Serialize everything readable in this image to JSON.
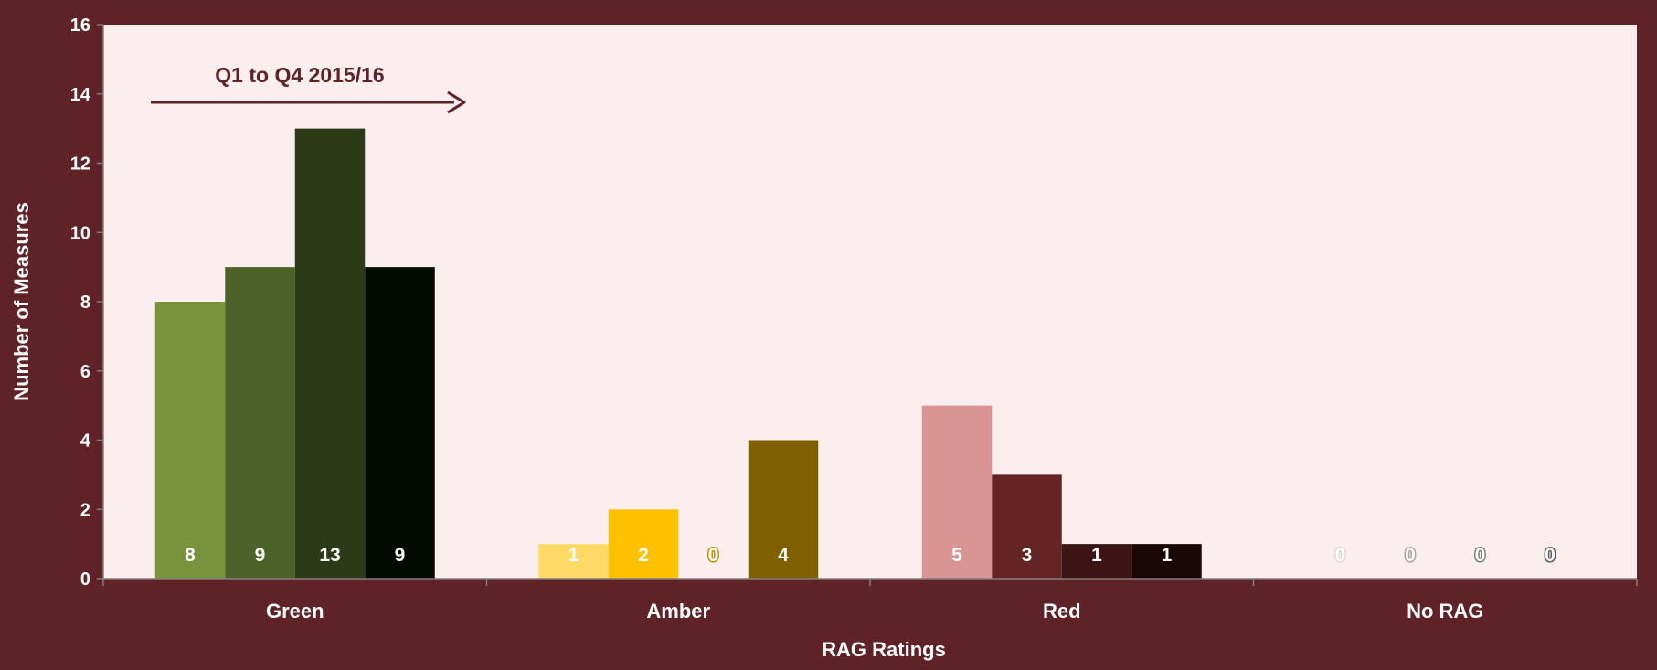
{
  "chart_data": {
    "type": "bar",
    "categories": [
      "Green",
      "Amber",
      "Red",
      "No RAG"
    ],
    "series": [
      {
        "values": [
          8,
          1,
          5,
          0
        ]
      },
      {
        "values": [
          9,
          2,
          3,
          0
        ]
      },
      {
        "values": [
          13,
          0,
          1,
          0
        ]
      },
      {
        "values": [
          9,
          4,
          1,
          0
        ]
      }
    ],
    "bar_colors": [
      [
        "#77933c",
        "#4c6229",
        "#2d3a17",
        "#030c02"
      ],
      [
        "#ffd966",
        "#ffc000",
        "#bf9000",
        "#7f6000"
      ],
      [
        "#d99594",
        "#632423",
        "#3b1413",
        "#1a0606"
      ],
      [
        "#d9d9d9",
        "#a6a6a6",
        "#7f7f7f",
        "#595959"
      ]
    ],
    "xlabel": "RAG Ratings",
    "ylabel": "Number of Measures",
    "ylim": [
      0,
      16
    ],
    "yticks": [
      "0",
      "2",
      "4",
      "6",
      "8",
      "10",
      "12",
      "14",
      "16"
    ],
    "annotation": "Q1 to Q4 2015/16",
    "grid": false,
    "legend": "none",
    "plot_background": "#fbeeee",
    "frame_color": "#5f2226"
  }
}
